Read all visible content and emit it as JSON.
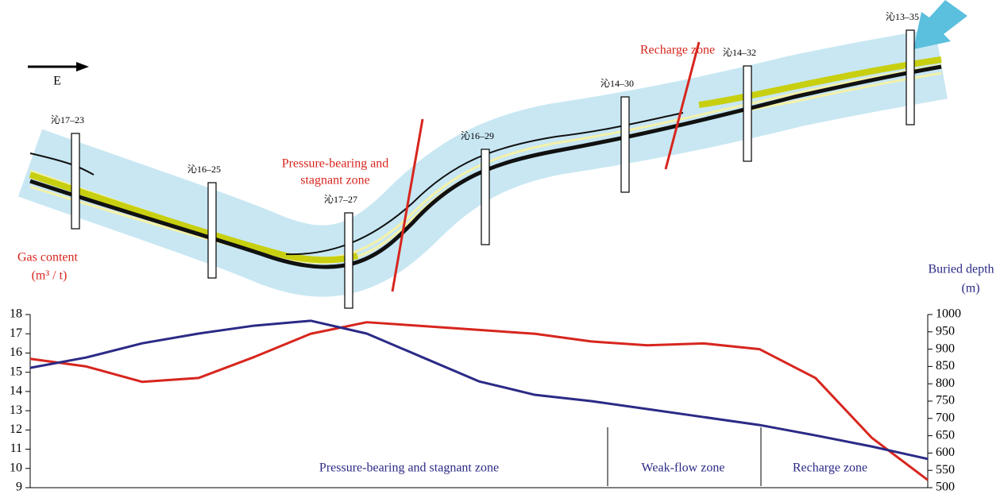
{
  "cross_section": {
    "direction": "E",
    "wells": [
      "沁17–23",
      "沁16–25",
      "沁17–27",
      "沁16–29",
      "沁14–30",
      "沁14–32",
      "沁13–35"
    ],
    "zone_left": [
      "Pressure-bearing and",
      "stagnant zone"
    ],
    "zone_right": "Recharge zone"
  },
  "chart_data": {
    "type": "line",
    "ylabel": "Gas content",
    "ylabel_unit": "(m³ / t)",
    "y2label": "Buried depth",
    "y2label_unit": "(m)",
    "categories": [
      null,
      null,
      null,
      null,
      null,
      null,
      null,
      null,
      null,
      null,
      null,
      null,
      null,
      null,
      null,
      null,
      null
    ],
    "series": [
      {
        "color": "#d7261e",
        "values": [
          15.7,
          15.3,
          14.5,
          14.7,
          15.8,
          17.0,
          17.6,
          17.4,
          17.2,
          17.0,
          16.6,
          16.4,
          16.5,
          16.2,
          14.7,
          11.6,
          9.4
        ]
      },
      {
        "color": "#2b2a86",
        "axis": "y2",
        "values": [
          846,
          876,
          917,
          945,
          968,
          982,
          945,
          876,
          807,
          768,
          750,
          727,
          704,
          681,
          651,
          619,
          583
        ]
      }
    ],
    "ylim": [
      9,
      18
    ],
    "yticks": [
      9,
      10,
      11,
      12,
      13,
      14,
      15,
      16,
      17,
      18
    ],
    "y2lim": [
      500,
      1000
    ],
    "y2ticks": [
      500,
      550,
      600,
      650,
      700,
      750,
      800,
      850,
      900,
      950,
      1000
    ],
    "annotations": [
      "Pressure-bearing and stagnant zone",
      "Weak-flow zone",
      "Recharge zone"
    ]
  }
}
